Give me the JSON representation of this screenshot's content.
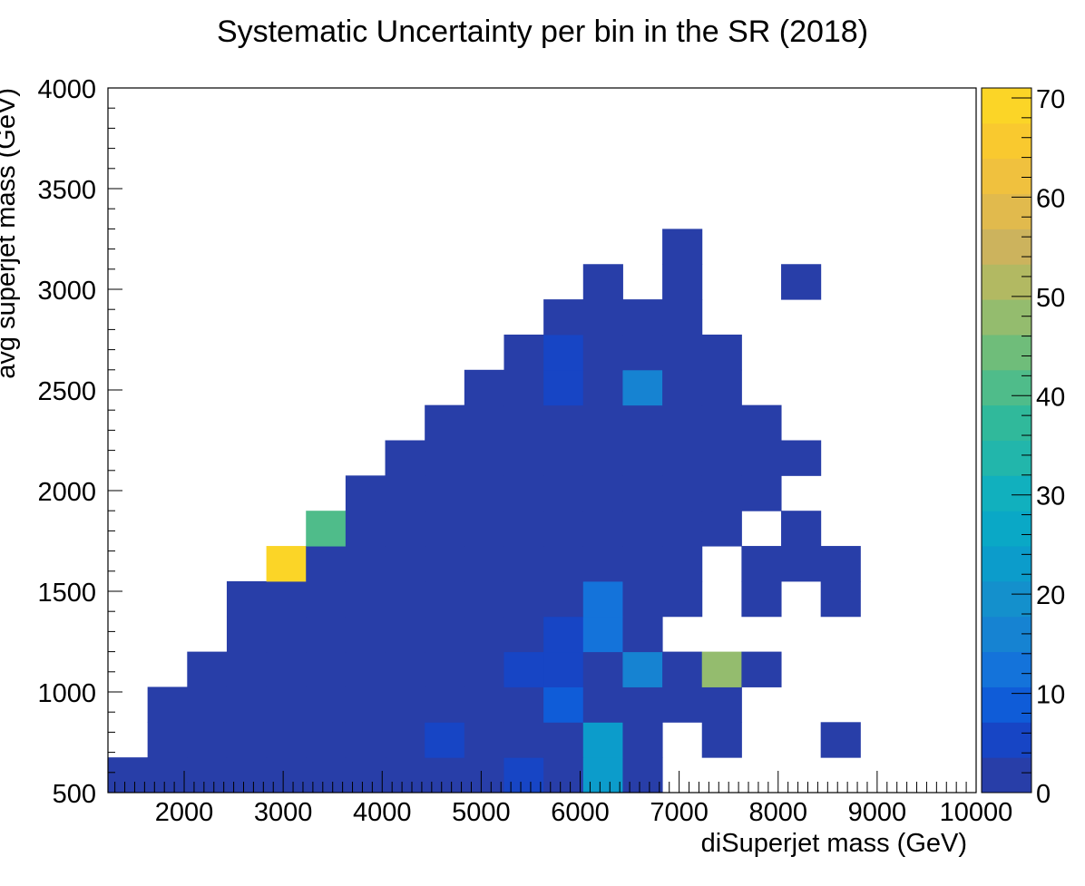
{
  "chart_data": {
    "type": "heatmap",
    "title": "Systematic Uncertainty per bin in the SR (2018)",
    "xlabel": "diSuperjet mass (GeV)",
    "ylabel": "avg superjet mass (GeV)",
    "xlim": [
      1230,
      10000
    ],
    "ylim": [
      500,
      4000
    ],
    "x_bin_edges": [
      1230,
      1630,
      2030,
      2430,
      2830,
      3230,
      3630,
      4030,
      4430,
      4830,
      5230,
      5630,
      6030,
      6430,
      6830,
      7230,
      7630,
      8030,
      8430,
      8830
    ],
    "y_bin_edges": [
      500,
      675,
      850,
      1025,
      1200,
      1375,
      1550,
      1725,
      1900,
      2075,
      2250,
      2425,
      2600,
      2775,
      2950,
      3125,
      3300
    ],
    "x_ticks": [
      2000,
      3000,
      4000,
      5000,
      6000,
      7000,
      8000,
      9000,
      10000
    ],
    "x_tick_labels": [
      "2000",
      "3000",
      "4000",
      "5000",
      "6000",
      "7000",
      "8000",
      "9000",
      "10000"
    ],
    "y_ticks": [
      500,
      1000,
      1500,
      2000,
      2500,
      3000,
      3500,
      4000
    ],
    "y_tick_labels": [
      "500",
      "1000",
      "1500",
      "2000",
      "2500",
      "3000",
      "3500",
      "4000"
    ],
    "zlim": [
      0,
      71
    ],
    "z_ticks": [
      0,
      10,
      20,
      30,
      40,
      50,
      60,
      70
    ],
    "z_tick_labels": [
      "0",
      "10",
      "20",
      "30",
      "40",
      "50",
      "60",
      "70"
    ],
    "z_bin_width": 3.55,
    "colormap": [
      "#283ea8",
      "#1745c5",
      "#0f5cd8",
      "#1473da",
      "#1683d2",
      "#1490cc",
      "#0c9ccb",
      "#0aa8c6",
      "#11b0be",
      "#22b6ab",
      "#30b99b",
      "#4fbc8a",
      "#6fbd7a",
      "#94bc6e",
      "#b2b962",
      "#ccb35d",
      "#e1ba4d",
      "#f0c13e",
      "#f9c92f",
      "#fbd527",
      "#f7e41f",
      "#f6f214",
      "#f9fb0e"
    ],
    "cells": [
      [
        0,
        0,
        2
      ],
      [
        1,
        0,
        2
      ],
      [
        2,
        0,
        2
      ],
      [
        3,
        0,
        2
      ],
      [
        4,
        0,
        2
      ],
      [
        5,
        0,
        2
      ],
      [
        6,
        0,
        2
      ],
      [
        7,
        0,
        2
      ],
      [
        8,
        0,
        2
      ],
      [
        9,
        0,
        2
      ],
      [
        10,
        0,
        5
      ],
      [
        11,
        0,
        2
      ],
      [
        12,
        0,
        24
      ],
      [
        13,
        0,
        2
      ],
      [
        1,
        1,
        2
      ],
      [
        2,
        1,
        2
      ],
      [
        3,
        1,
        2
      ],
      [
        4,
        1,
        2
      ],
      [
        5,
        1,
        2
      ],
      [
        6,
        1,
        2
      ],
      [
        7,
        1,
        2
      ],
      [
        8,
        1,
        5
      ],
      [
        9,
        1,
        2
      ],
      [
        10,
        1,
        2
      ],
      [
        11,
        1,
        2
      ],
      [
        12,
        1,
        24
      ],
      [
        13,
        1,
        2
      ],
      [
        15,
        1,
        2
      ],
      [
        18,
        1,
        2
      ],
      [
        1,
        2,
        2
      ],
      [
        2,
        2,
        2
      ],
      [
        3,
        2,
        2
      ],
      [
        4,
        2,
        2
      ],
      [
        5,
        2,
        2
      ],
      [
        6,
        2,
        2
      ],
      [
        7,
        2,
        2
      ],
      [
        8,
        2,
        2
      ],
      [
        9,
        2,
        2
      ],
      [
        10,
        2,
        2
      ],
      [
        11,
        2,
        9
      ],
      [
        12,
        2,
        2
      ],
      [
        13,
        2,
        2
      ],
      [
        14,
        2,
        2
      ],
      [
        15,
        2,
        2
      ],
      [
        2,
        3,
        2
      ],
      [
        3,
        3,
        2
      ],
      [
        4,
        3,
        2
      ],
      [
        5,
        3,
        2
      ],
      [
        6,
        3,
        2
      ],
      [
        7,
        3,
        2
      ],
      [
        8,
        3,
        2
      ],
      [
        9,
        3,
        2
      ],
      [
        10,
        3,
        6
      ],
      [
        11,
        3,
        6
      ],
      [
        12,
        3,
        2
      ],
      [
        13,
        3,
        16
      ],
      [
        14,
        3,
        2
      ],
      [
        15,
        3,
        47
      ],
      [
        16,
        3,
        2
      ],
      [
        3,
        4,
        2
      ],
      [
        4,
        4,
        2
      ],
      [
        5,
        4,
        2
      ],
      [
        6,
        4,
        2
      ],
      [
        7,
        4,
        2
      ],
      [
        8,
        4,
        2
      ],
      [
        9,
        4,
        2
      ],
      [
        10,
        4,
        2
      ],
      [
        11,
        4,
        6
      ],
      [
        12,
        4,
        12
      ],
      [
        13,
        4,
        2
      ],
      [
        3,
        5,
        2
      ],
      [
        4,
        5,
        2
      ],
      [
        5,
        5,
        2
      ],
      [
        6,
        5,
        2
      ],
      [
        7,
        5,
        2
      ],
      [
        8,
        5,
        2
      ],
      [
        9,
        5,
        2
      ],
      [
        10,
        5,
        2
      ],
      [
        11,
        5,
        2
      ],
      [
        12,
        5,
        12
      ],
      [
        13,
        5,
        2
      ],
      [
        14,
        5,
        2
      ],
      [
        16,
        5,
        2
      ],
      [
        18,
        5,
        2
      ],
      [
        4,
        6,
        70
      ],
      [
        5,
        6,
        2
      ],
      [
        6,
        6,
        2
      ],
      [
        7,
        6,
        2
      ],
      [
        8,
        6,
        2
      ],
      [
        9,
        6,
        2
      ],
      [
        10,
        6,
        2
      ],
      [
        11,
        6,
        2
      ],
      [
        12,
        6,
        2
      ],
      [
        13,
        6,
        2
      ],
      [
        14,
        6,
        2
      ],
      [
        16,
        6,
        2
      ],
      [
        17,
        6,
        2
      ],
      [
        18,
        6,
        2
      ],
      [
        5,
        7,
        40
      ],
      [
        6,
        7,
        2
      ],
      [
        7,
        7,
        2
      ],
      [
        8,
        7,
        2
      ],
      [
        9,
        7,
        2
      ],
      [
        10,
        7,
        2
      ],
      [
        11,
        7,
        2
      ],
      [
        12,
        7,
        2
      ],
      [
        13,
        7,
        2
      ],
      [
        14,
        7,
        2
      ],
      [
        15,
        7,
        2
      ],
      [
        17,
        7,
        2
      ],
      [
        6,
        8,
        2
      ],
      [
        7,
        8,
        2
      ],
      [
        8,
        8,
        2
      ],
      [
        9,
        8,
        2
      ],
      [
        10,
        8,
        2
      ],
      [
        11,
        8,
        2
      ],
      [
        12,
        8,
        2
      ],
      [
        13,
        8,
        2
      ],
      [
        14,
        8,
        2
      ],
      [
        15,
        8,
        2
      ],
      [
        16,
        8,
        2
      ],
      [
        7,
        9,
        2
      ],
      [
        8,
        9,
        2
      ],
      [
        9,
        9,
        2
      ],
      [
        10,
        9,
        2
      ],
      [
        11,
        9,
        2
      ],
      [
        12,
        9,
        2
      ],
      [
        13,
        9,
        2
      ],
      [
        14,
        9,
        2
      ],
      [
        15,
        9,
        2
      ],
      [
        16,
        9,
        2
      ],
      [
        17,
        9,
        2
      ],
      [
        8,
        10,
        2
      ],
      [
        9,
        10,
        2
      ],
      [
        10,
        10,
        2
      ],
      [
        11,
        10,
        2
      ],
      [
        12,
        10,
        2
      ],
      [
        13,
        10,
        2
      ],
      [
        14,
        10,
        2
      ],
      [
        15,
        10,
        2
      ],
      [
        16,
        10,
        2
      ],
      [
        9,
        11,
        2
      ],
      [
        10,
        11,
        2
      ],
      [
        11,
        11,
        6
      ],
      [
        12,
        11,
        2
      ],
      [
        13,
        11,
        16
      ],
      [
        14,
        11,
        2
      ],
      [
        15,
        11,
        2
      ],
      [
        10,
        12,
        2
      ],
      [
        11,
        12,
        6
      ],
      [
        12,
        12,
        2
      ],
      [
        13,
        12,
        2
      ],
      [
        14,
        12,
        2
      ],
      [
        15,
        12,
        2
      ],
      [
        11,
        13,
        2
      ],
      [
        12,
        13,
        2
      ],
      [
        13,
        13,
        2
      ],
      [
        14,
        13,
        2
      ],
      [
        12,
        14,
        2
      ],
      [
        14,
        14,
        2
      ],
      [
        17,
        14,
        2
      ],
      [
        14,
        15,
        2
      ]
    ],
    "grid": false,
    "colorbar": "right"
  }
}
